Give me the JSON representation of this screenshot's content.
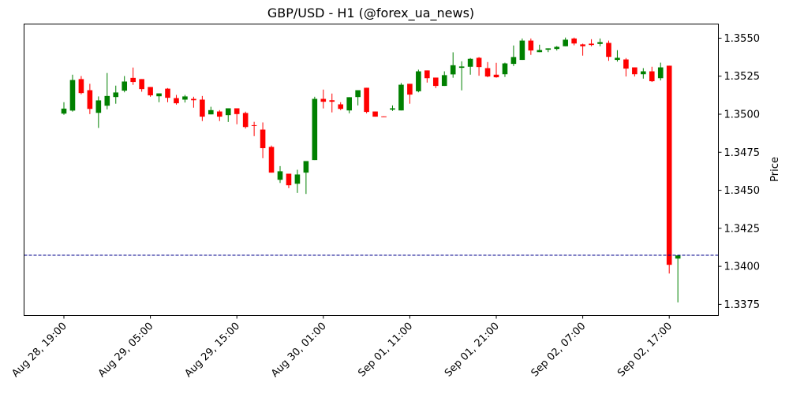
{
  "chart_data": {
    "type": "candlestick",
    "title": "GBP/USD - H1 (@forex_ua_news)",
    "xlabel": "",
    "ylabel": "Price",
    "ylim": [
      1.33677,
      1.35593
    ],
    "yticks": [
      1.3375,
      1.34,
      1.3425,
      1.345,
      1.3475,
      1.35,
      1.3525,
      1.355
    ],
    "ytick_labels": [
      "1.3375",
      "1.3400",
      "1.3425",
      "1.3450",
      "1.3475",
      "1.3500",
      "1.3525",
      "1.3550"
    ],
    "xtick_index": [
      0,
      10,
      20,
      30,
      40,
      50,
      60,
      70
    ],
    "xtick_labels": [
      "Aug 28, 19:00",
      "Aug 29, 05:00",
      "Aug 29, 15:00",
      "Aug 30, 01:00",
      "Sep 01, 11:00",
      "Sep 01, 21:00",
      "Sep 02, 07:00",
      "Sep 02, 17:00"
    ],
    "grid": false,
    "up_color": "#008000",
    "down_color": "#ff0000",
    "reference_line": {
      "value": 1.34073,
      "color": "#00008b",
      "style": "dashed"
    },
    "ohlc_fields": [
      "open",
      "high",
      "low",
      "close"
    ],
    "ohlc": [
      [
        1.35004,
        1.35079,
        1.34996,
        1.35037
      ],
      [
        1.35024,
        1.3526,
        1.35017,
        1.35225
      ],
      [
        1.35231,
        1.35251,
        1.35131,
        1.35139
      ],
      [
        1.35158,
        1.352,
        1.35001,
        1.35035
      ],
      [
        1.35009,
        1.35117,
        1.3491,
        1.35091
      ],
      [
        1.35056,
        1.35271,
        1.35032,
        1.3512
      ],
      [
        1.35113,
        1.35188,
        1.35069,
        1.35143
      ],
      [
        1.35155,
        1.35251,
        1.35144,
        1.35215
      ],
      [
        1.35239,
        1.35307,
        1.35193,
        1.35212
      ],
      [
        1.35231,
        1.35231,
        1.35148,
        1.35165
      ],
      [
        1.35179,
        1.35179,
        1.35115,
        1.35124
      ],
      [
        1.35118,
        1.35137,
        1.35079,
        1.35137
      ],
      [
        1.35168,
        1.35172,
        1.35079,
        1.35108
      ],
      [
        1.35106,
        1.35127,
        1.35063,
        1.35072
      ],
      [
        1.35096,
        1.35127,
        1.35077,
        1.35117
      ],
      [
        1.35101,
        1.35115,
        1.35043,
        1.35092
      ],
      [
        1.35096,
        1.3512,
        1.34955,
        1.34984
      ],
      [
        1.34999,
        1.35049,
        1.34999,
        1.35027
      ],
      [
        1.35018,
        1.35027,
        1.34955,
        1.34984
      ],
      [
        1.34994,
        1.35039,
        1.34949,
        1.35039
      ],
      [
        1.35039,
        1.35039,
        1.34934,
        1.35001
      ],
      [
        1.35008,
        1.35017,
        1.34906,
        1.34916
      ],
      [
        1.34928,
        1.3495,
        1.34856,
        1.34925
      ],
      [
        1.34899,
        1.34946,
        1.34711,
        1.34777
      ],
      [
        1.34785,
        1.34794,
        1.34616,
        1.34616
      ],
      [
        1.34569,
        1.34659,
        1.34548,
        1.34625
      ],
      [
        1.34609,
        1.34609,
        1.34514,
        1.34533
      ],
      [
        1.34543,
        1.34635,
        1.34483,
        1.34604
      ],
      [
        1.34616,
        1.34692,
        1.34476,
        1.34692
      ],
      [
        1.34699,
        1.35115,
        1.34699,
        1.35101
      ],
      [
        1.35101,
        1.35162,
        1.35038,
        1.35082
      ],
      [
        1.35092,
        1.35136,
        1.35012,
        1.35082
      ],
      [
        1.35065,
        1.35079,
        1.35027,
        1.35035
      ],
      [
        1.35025,
        1.35112,
        1.35006,
        1.35112
      ],
      [
        1.35113,
        1.35158,
        1.35058,
        1.35158
      ],
      [
        1.35174,
        1.35174,
        1.35006,
        1.35015
      ],
      [
        1.35018,
        1.35018,
        1.34984,
        1.34984
      ],
      [
        1.34986,
        1.34986,
        1.34984,
        1.34984
      ],
      [
        1.3503,
        1.35058,
        1.35022,
        1.35039
      ],
      [
        1.35025,
        1.35205,
        1.35025,
        1.35194
      ],
      [
        1.352,
        1.352,
        1.35069,
        1.35129
      ],
      [
        1.35151,
        1.35293,
        1.35144,
        1.35282
      ],
      [
        1.35288,
        1.35288,
        1.35208,
        1.35237
      ],
      [
        1.35241,
        1.35241,
        1.35172,
        1.35186
      ],
      [
        1.35186,
        1.35282,
        1.35186,
        1.35257
      ],
      [
        1.35262,
        1.35407,
        1.3524,
        1.35322
      ],
      [
        1.35305,
        1.35348,
        1.35157,
        1.35314
      ],
      [
        1.35312,
        1.35369,
        1.3526,
        1.35364
      ],
      [
        1.35371,
        1.35376,
        1.35253,
        1.3531
      ],
      [
        1.35303,
        1.35343,
        1.35243,
        1.35248
      ],
      [
        1.3526,
        1.35338,
        1.3524,
        1.35243
      ],
      [
        1.35263,
        1.35339,
        1.35245,
        1.35334
      ],
      [
        1.35331,
        1.35452,
        1.35317,
        1.35376
      ],
      [
        1.35357,
        1.35498,
        1.35357,
        1.35484
      ],
      [
        1.35484,
        1.35498,
        1.3539,
        1.35419
      ],
      [
        1.35408,
        1.35457,
        1.35408,
        1.35422
      ],
      [
        1.35424,
        1.35433,
        1.35408,
        1.35433
      ],
      [
        1.35429,
        1.35448,
        1.35419,
        1.35443
      ],
      [
        1.35447,
        1.35504,
        1.35447,
        1.3549
      ],
      [
        1.35498,
        1.35504,
        1.35453,
        1.35465
      ],
      [
        1.35459,
        1.35464,
        1.35385,
        1.35447
      ],
      [
        1.35464,
        1.35493,
        1.35447,
        1.35455
      ],
      [
        1.35462,
        1.35498,
        1.35447,
        1.35474
      ],
      [
        1.35469,
        1.35484,
        1.35351,
        1.35377
      ],
      [
        1.35357,
        1.35421,
        1.35346,
        1.35371
      ],
      [
        1.3536,
        1.35369,
        1.35248,
        1.353
      ],
      [
        1.35308,
        1.35308,
        1.35248,
        1.35263
      ],
      [
        1.35263,
        1.35303,
        1.35234,
        1.35282
      ],
      [
        1.35282,
        1.35312,
        1.35212,
        1.35217
      ],
      [
        1.35237,
        1.35339,
        1.35222,
        1.35308
      ],
      [
        1.35319,
        1.35319,
        1.33953,
        1.3401
      ],
      [
        1.34051,
        1.34072,
        1.33763,
        1.34072
      ]
    ]
  }
}
